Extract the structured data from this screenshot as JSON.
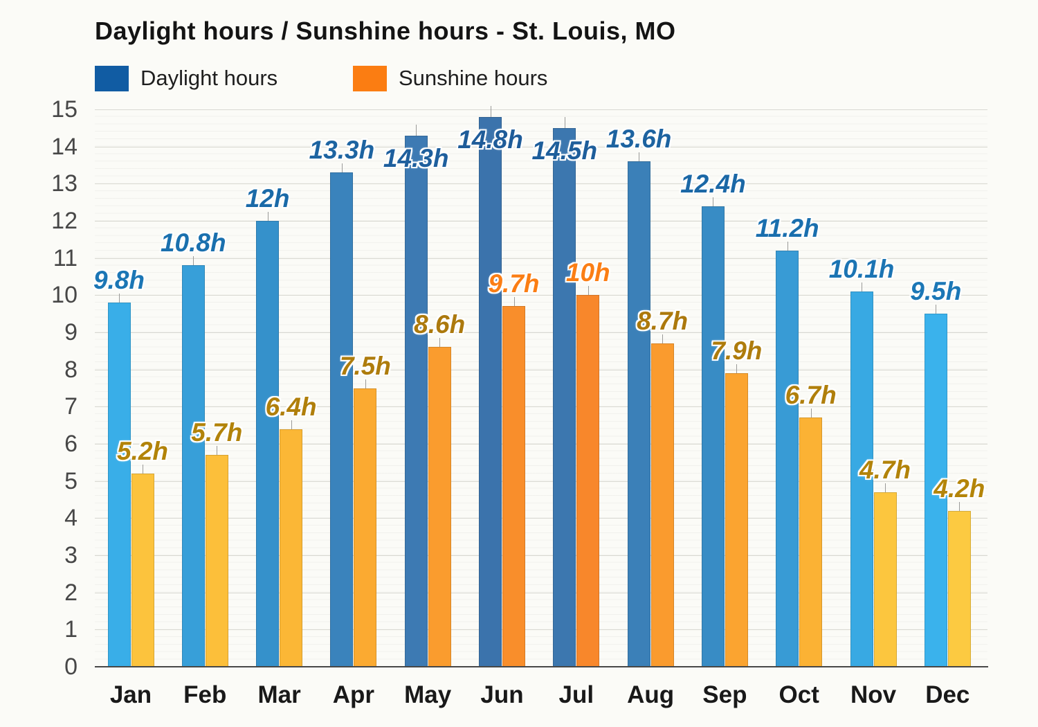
{
  "title": "Daylight hours / Sunshine hours - St. Louis, MO",
  "legend": [
    {
      "label": "Daylight hours",
      "color": "#115ca3"
    },
    {
      "label": "Sunshine hours",
      "color": "#fb7d12"
    }
  ],
  "y_axis": {
    "ticks": [
      "0",
      "1",
      "2",
      "3",
      "4",
      "5",
      "6",
      "7",
      "8",
      "9",
      "10",
      "11",
      "12",
      "13",
      "14",
      "15"
    ]
  },
  "chart_data": {
    "type": "bar",
    "title": "Daylight hours / Sunshine hours - St. Louis, MO",
    "categories": [
      "Jan",
      "Feb",
      "Mar",
      "Apr",
      "May",
      "Jun",
      "Jul",
      "Aug",
      "Sep",
      "Oct",
      "Nov",
      "Dec"
    ],
    "series": [
      {
        "name": "Daylight hours",
        "values": [
          9.8,
          10.8,
          12,
          13.3,
          14.3,
          14.8,
          14.5,
          13.6,
          12.4,
          11.2,
          10.1,
          9.5
        ],
        "labels": [
          "9.8h",
          "10.8h",
          "12h",
          "13.3h",
          "14.3h",
          "14.8h",
          "14.5h",
          "13.6h",
          "12.4h",
          "11.2h",
          "10.1h",
          "9.5h"
        ],
        "bar_colors": [
          "#39aee8",
          "#379fd9",
          "#3591cb",
          "#3a83bc",
          "#3d7ab3",
          "#3b73ac",
          "#3c77af",
          "#3b80b8",
          "#388cc5",
          "#389bd5",
          "#38a9e3",
          "#3ab2ec"
        ],
        "label_colors": [
          "#1b76b5",
          "#1a70ae",
          "#1a6aa8",
          "#1d64a1",
          "#1e5f9d",
          "#1f5c99",
          "#1e5e9b",
          "#1d63a0",
          "#1b68a6",
          "#1a6fae",
          "#1b74b3",
          "#1b77b6"
        ]
      },
      {
        "name": "Sunshine hours",
        "values": [
          5.2,
          5.7,
          6.4,
          7.5,
          8.6,
          9.7,
          10,
          8.7,
          7.9,
          6.7,
          4.7,
          4.2
        ],
        "labels": [
          "5.2h",
          "5.7h",
          "6.4h",
          "7.5h",
          "8.6h",
          "9.7h",
          "10h",
          "8.7h",
          "7.9h",
          "6.7h",
          "4.7h",
          "4.2h"
        ],
        "bar_colors": [
          "#fcc33d",
          "#fcbf3a",
          "#fbb736",
          "#fbaa31",
          "#fa9c2e",
          "#f98e2b",
          "#f8872b",
          "#fa9b2e",
          "#fba430",
          "#fbb234",
          "#fcc63e",
          "#fcca41"
        ],
        "label_colors": [
          "#b28309",
          "#b28309",
          "#b07f0b",
          "#ae7c0c",
          "#ac790d",
          "#fb7e14",
          "#fb7e14",
          "#ac790d",
          "#ae7c0c",
          "#b07f0b",
          "#b28309",
          "#b48509"
        ]
      }
    ],
    "ylim": [
      0,
      15
    ],
    "ytick_step": 1,
    "grid": "on",
    "legend_position": "top-left"
  }
}
